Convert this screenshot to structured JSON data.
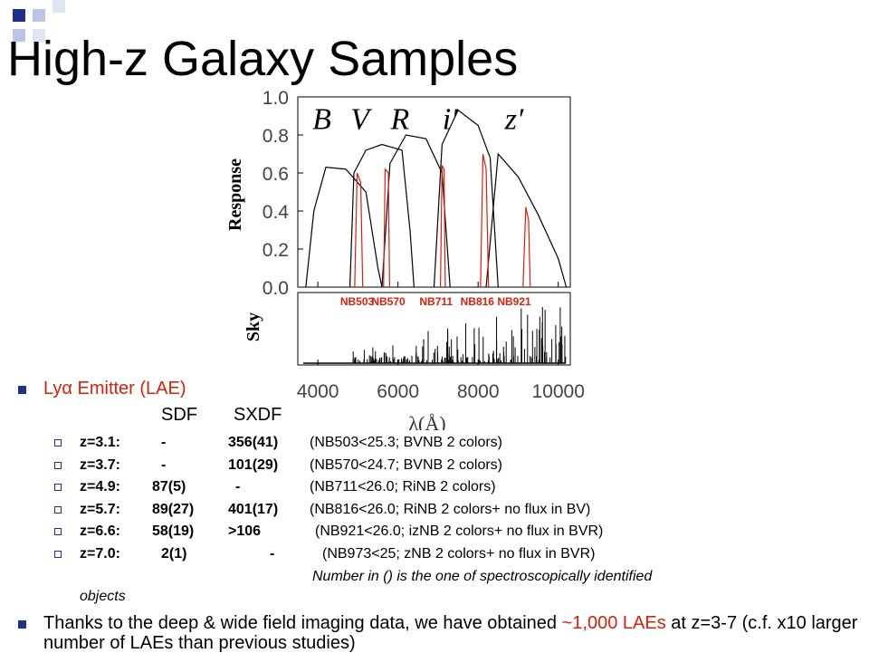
{
  "slide": {
    "title": "High-z Galaxy Samples",
    "colors": {
      "accent_blue": "#1f2f8a",
      "light_blue": "#a8b8e0",
      "highlight_red": "#d9200c"
    }
  },
  "figure": {
    "ylabel": "Response",
    "sky_label": "Sky",
    "xlabel": "λ(Å)",
    "yticks": [
      "1.0",
      "0.8",
      "0.6",
      "0.4",
      "0.2",
      "0.0"
    ],
    "xticks": [
      "4000",
      "6000",
      "8000",
      "10000"
    ],
    "broadband_labels": [
      "B",
      "V",
      "R",
      "i′",
      "z′"
    ],
    "narrowband_labels": [
      "NB503",
      "NB570",
      "NB711",
      "NB816",
      "NB921"
    ]
  },
  "chart_data": {
    "type": "line",
    "xlabel": "λ(Å)",
    "ylabel": "Response",
    "xlim": [
      3500,
      10300
    ],
    "ylim": [
      0.0,
      1.0
    ],
    "series": [
      {
        "name": "B",
        "x": [
          3700,
          3900,
          4200,
          4700,
          5200,
          5500,
          5600
        ],
        "y": [
          0.0,
          0.4,
          0.63,
          0.62,
          0.5,
          0.1,
          0.0
        ]
      },
      {
        "name": "V",
        "x": [
          4800,
          4900,
          5200,
          5600,
          6100,
          6300,
          6400
        ],
        "y": [
          0.0,
          0.6,
          0.72,
          0.75,
          0.72,
          0.3,
          0.0
        ]
      },
      {
        "name": "R",
        "x": [
          5600,
          5800,
          6200,
          6700,
          7100,
          7300
        ],
        "y": [
          0.0,
          0.65,
          0.8,
          0.78,
          0.6,
          0.0
        ]
      },
      {
        "name": "i′",
        "x": [
          6900,
          7100,
          7500,
          8000,
          8300,
          8500
        ],
        "y": [
          0.0,
          0.75,
          0.93,
          0.85,
          0.68,
          0.0
        ]
      },
      {
        "name": "z′",
        "x": [
          8200,
          8500,
          9000,
          9500,
          10000,
          10200
        ],
        "y": [
          0.0,
          0.7,
          0.58,
          0.38,
          0.15,
          0.0
        ]
      },
      {
        "name": "NB503",
        "x": [
          4920,
          4980,
          5070,
          5120
        ],
        "y": [
          0.0,
          0.6,
          0.55,
          0.0
        ]
      },
      {
        "name": "NB570",
        "x": [
          5640,
          5680,
          5760,
          5790
        ],
        "y": [
          0.0,
          0.62,
          0.6,
          0.0
        ]
      },
      {
        "name": "NB711",
        "x": [
          7060,
          7100,
          7150,
          7180
        ],
        "y": [
          0.0,
          0.64,
          0.62,
          0.0
        ]
      },
      {
        "name": "NB816",
        "x": [
          8060,
          8120,
          8200,
          8260
        ],
        "y": [
          0.0,
          0.7,
          0.62,
          0.0
        ]
      },
      {
        "name": "NB921",
        "x": [
          9120,
          9190,
          9260,
          9300
        ],
        "y": [
          0.0,
          0.42,
          0.35,
          0.0
        ]
      }
    ]
  },
  "lae": {
    "label": "Lyα Emitter (LAE)",
    "col_sdf": "SDF",
    "col_sxdf": "SXDF",
    "rows": [
      {
        "z": "z=3.1:",
        "sdf": "-",
        "sxdf": "356(41)",
        "note": "(NB503<25.3; BVNB 2 colors)"
      },
      {
        "z": "z=3.7:",
        "sdf": "-",
        "sxdf": "101(29)",
        "note": "(NB570<24.7; BVNB 2 colors)"
      },
      {
        "z": "z=4.9:",
        "sdf": "87(5)",
        "sxdf": "-",
        "note": "(NB711<26.0; RiNB 2 colors)"
      },
      {
        "z": "z=5.7:",
        "sdf": "89(27)",
        "sxdf": "401(17)",
        "note": "(NB816<26.0; RiNB 2 colors+ no flux in BV)"
      },
      {
        "z": "z=6.6:",
        "sdf": "58(19)",
        "sxdf": ">106",
        "note": "(NB921<26.0; izNB 2 colors+ no flux in BVR)"
      },
      {
        "z": "z=7.0:",
        "sdf": "2(1)",
        "sxdf": "-",
        "note": "(NB973<25;    zNB 2 colors+ no flux in BVR)"
      }
    ],
    "footnote_line1": "Number in () is the one of spectroscopically identified",
    "footnote_line2": "objects"
  },
  "bullet2": {
    "text_a": "Thanks to the deep & wide field imaging data, we have obtained ",
    "highlight": "~1,000 LAEs",
    "text_b": " at z=3-7 (c.f. x10 larger number of LAEs than previous studies)"
  }
}
